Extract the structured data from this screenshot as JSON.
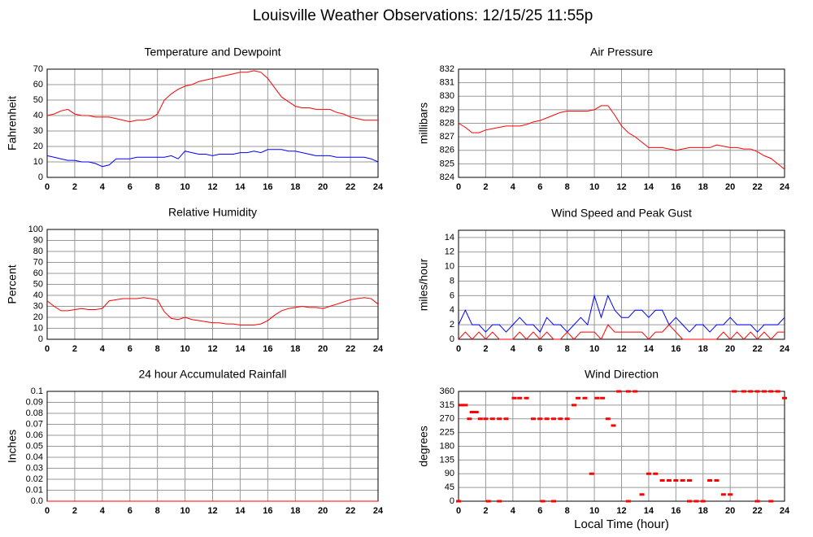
{
  "title": "Louisville Weather Observations: 12/15/25 11:55p",
  "chart_data": [
    {
      "type": "line",
      "title": "Temperature and Dewpoint",
      "ylabel": "Fahrenheit",
      "xlim": [
        0,
        24
      ],
      "xticks": [
        0,
        2,
        4,
        6,
        8,
        10,
        12,
        14,
        16,
        18,
        20,
        22,
        24
      ],
      "ylim": [
        0,
        70
      ],
      "yticks": [
        0,
        10,
        20,
        30,
        40,
        50,
        60,
        70
      ],
      "grid": true,
      "x": [
        0,
        0.5,
        1,
        1.5,
        2,
        2.5,
        3,
        3.5,
        4,
        4.5,
        5,
        5.5,
        6,
        6.5,
        7,
        7.5,
        8,
        8.5,
        9,
        9.5,
        10,
        10.5,
        11,
        11.5,
        12,
        12.5,
        13,
        13.5,
        14,
        14.5,
        15,
        15.5,
        16,
        16.5,
        17,
        17.5,
        18,
        18.5,
        19,
        19.5,
        20,
        20.5,
        21,
        21.5,
        22,
        22.5,
        23,
        23.5,
        24
      ],
      "series": [
        {
          "color": "#ff0000",
          "values": [
            40,
            41,
            43,
            44,
            41,
            40,
            40,
            39,
            39,
            39,
            38,
            37,
            36,
            37,
            37,
            38,
            41,
            50,
            54,
            57,
            59,
            60,
            62,
            63,
            64,
            65,
            66,
            67,
            68,
            68,
            69,
            68,
            64,
            58,
            52,
            49,
            46,
            45,
            45,
            44,
            44,
            44,
            42,
            41,
            39,
            38,
            37,
            37,
            37
          ]
        },
        {
          "color": "#0000ff",
          "values": [
            14,
            13,
            12,
            11,
            11,
            10,
            10,
            9,
            7,
            8,
            12,
            12,
            12,
            13,
            13,
            13,
            13,
            13,
            14,
            12,
            17,
            16,
            15,
            15,
            14,
            15,
            15,
            15,
            16,
            16,
            17,
            16,
            18,
            18,
            18,
            17,
            17,
            16,
            15,
            14,
            14,
            14,
            13,
            13,
            13,
            13,
            13,
            12,
            10
          ]
        }
      ]
    },
    {
      "type": "line",
      "title": "Air Pressure",
      "ylabel": "millibars",
      "xlim": [
        0,
        24
      ],
      "xticks": [
        0,
        2,
        4,
        6,
        8,
        10,
        12,
        14,
        16,
        18,
        20,
        22,
        24
      ],
      "ylim": [
        824,
        832
      ],
      "yticks": [
        824,
        825,
        826,
        827,
        828,
        829,
        830,
        831,
        832
      ],
      "grid": true,
      "x": [
        0,
        0.5,
        1,
        1.5,
        2,
        2.5,
        3,
        3.5,
        4,
        4.5,
        5,
        5.5,
        6,
        6.5,
        7,
        7.5,
        8,
        8.5,
        9,
        9.5,
        10,
        10.5,
        11,
        11.5,
        12,
        12.5,
        13,
        13.5,
        14,
        14.5,
        15,
        15.5,
        16,
        16.5,
        17,
        17.5,
        18,
        18.5,
        19,
        19.5,
        20,
        20.5,
        21,
        21.5,
        22,
        22.5,
        23,
        23.5,
        24
      ],
      "series": [
        {
          "color": "#ff0000",
          "values": [
            828,
            827.7,
            827.3,
            827.3,
            827.5,
            827.6,
            827.7,
            827.8,
            827.8,
            827.8,
            827.9,
            828.1,
            828.2,
            828.4,
            828.6,
            828.8,
            828.9,
            828.9,
            828.9,
            828.9,
            829.0,
            829.3,
            829.3,
            828.6,
            827.8,
            827.3,
            827,
            826.6,
            826.2,
            826.2,
            826.2,
            826.1,
            826.0,
            826.1,
            826.2,
            826.2,
            826.2,
            826.2,
            826.4,
            826.3,
            826.2,
            826.2,
            826.1,
            826.1,
            825.9,
            825.6,
            825.4,
            825,
            824.6
          ]
        }
      ]
    },
    {
      "type": "line",
      "title": "Relative Humidity",
      "ylabel": "Percent",
      "xlim": [
        0,
        24
      ],
      "xticks": [
        0,
        2,
        4,
        6,
        8,
        10,
        12,
        14,
        16,
        18,
        20,
        22,
        24
      ],
      "ylim": [
        0,
        100
      ],
      "yticks": [
        0,
        10,
        20,
        30,
        40,
        50,
        60,
        70,
        80,
        90,
        100
      ],
      "grid": true,
      "x": [
        0,
        0.5,
        1,
        1.5,
        2,
        2.5,
        3,
        3.5,
        4,
        4.5,
        5,
        5.5,
        6,
        6.5,
        7,
        7.5,
        8,
        8.5,
        9,
        9.5,
        10,
        10.5,
        11,
        11.5,
        12,
        12.5,
        13,
        13.5,
        14,
        14.5,
        15,
        15.5,
        16,
        16.5,
        17,
        17.5,
        18,
        18.5,
        19,
        19.5,
        20,
        20.5,
        21,
        21.5,
        22,
        22.5,
        23,
        23.5,
        24
      ],
      "series": [
        {
          "color": "#ff0000",
          "values": [
            35,
            30,
            26,
            26,
            27,
            28,
            27,
            27,
            28,
            35,
            36,
            37,
            37,
            37,
            38,
            37,
            36,
            25,
            19,
            18,
            20,
            18,
            17,
            16,
            15,
            15,
            14,
            14,
            13,
            13,
            13,
            14,
            17,
            22,
            26,
            28,
            29,
            30,
            29,
            29,
            28,
            30,
            32,
            34,
            36,
            37,
            38,
            37,
            32
          ]
        }
      ]
    },
    {
      "type": "line",
      "title": "Wind Speed and Peak Gust",
      "ylabel": "miles/hour",
      "xlim": [
        0,
        24
      ],
      "xticks": [
        0,
        2,
        4,
        6,
        8,
        10,
        12,
        14,
        16,
        18,
        20,
        22,
        24
      ],
      "ylim": [
        0,
        15
      ],
      "yticks": [
        0,
        2,
        4,
        6,
        8,
        10,
        12,
        14
      ],
      "grid": true,
      "x": [
        0,
        0.5,
        1,
        1.5,
        2,
        2.5,
        3,
        3.5,
        4,
        4.5,
        5,
        5.5,
        6,
        6.5,
        7,
        7.5,
        8,
        8.5,
        9,
        9.5,
        10,
        10.5,
        11,
        11.5,
        12,
        12.5,
        13,
        13.5,
        14,
        14.5,
        15,
        15.5,
        16,
        16.5,
        17,
        17.5,
        18,
        18.5,
        19,
        19.5,
        20,
        20.5,
        21,
        21.5,
        22,
        22.5,
        23,
        23.5,
        24
      ],
      "series": [
        {
          "color": "#0000ff",
          "values": [
            2,
            4,
            2,
            2,
            1,
            2,
            2,
            1,
            2,
            3,
            2,
            2,
            1,
            3,
            2,
            2,
            1,
            2,
            3,
            2,
            6,
            3,
            6,
            4,
            3,
            3,
            4,
            4,
            3,
            4,
            4,
            2,
            3,
            2,
            1,
            2,
            2,
            1,
            2,
            2,
            3,
            2,
            2,
            2,
            1,
            2,
            2,
            2,
            3
          ]
        },
        {
          "color": "#ff0000",
          "values": [
            0,
            1,
            0,
            1,
            0,
            1,
            0,
            0,
            0,
            1,
            0,
            1,
            0,
            1,
            0,
            0,
            1,
            0,
            1,
            1,
            1,
            0,
            2,
            1,
            1,
            1,
            1,
            1,
            0,
            1,
            1,
            2,
            1,
            0,
            0,
            0,
            0,
            0,
            0,
            1,
            0,
            1,
            0,
            1,
            0,
            1,
            0,
            1,
            1
          ]
        }
      ]
    },
    {
      "type": "line",
      "title": "24 hour Accumulated Rainfall",
      "ylabel": "Inches",
      "xlim": [
        0,
        24
      ],
      "xticks": [
        0,
        2,
        4,
        6,
        8,
        10,
        12,
        14,
        16,
        18,
        20,
        22,
        24
      ],
      "ylim": [
        0,
        0.1
      ],
      "yticks": [
        {
          "value": 0,
          "label": "0.0"
        },
        0.01,
        0.02,
        0.03,
        0.04,
        0.05,
        0.06,
        0.07,
        0.08,
        0.09,
        0.1
      ],
      "grid": true,
      "x": [
        0,
        24
      ],
      "series": [
        {
          "color": "#ff0000",
          "values": [
            0,
            0
          ]
        }
      ]
    },
    {
      "type": "scatter",
      "title": "Wind Direction",
      "ylabel": "degrees",
      "xlabel": "Local Time (hour)",
      "xlim": [
        0,
        24
      ],
      "xticks": [
        0,
        2,
        4,
        6,
        8,
        10,
        12,
        14,
        16,
        18,
        20,
        22,
        24
      ],
      "ylim": [
        0,
        360
      ],
      "yticks": [
        0,
        45,
        90,
        135,
        180,
        225,
        270,
        315,
        360
      ],
      "grid": true,
      "x": [
        0,
        0.2,
        0.5,
        0.8,
        1,
        1.3,
        1.6,
        2,
        2.5,
        3,
        3.5,
        2.2,
        3,
        4.1,
        4.5,
        5,
        5.5,
        6,
        6.5,
        7,
        7.5,
        8,
        6.2,
        7,
        8.5,
        8.8,
        9.3,
        9.8,
        10.2,
        10.6,
        11,
        11.4,
        11.8,
        12.5,
        13,
        13.5,
        14,
        14.5,
        15,
        15.5,
        16,
        16.5,
        17,
        17,
        17.5,
        18,
        18.5,
        19,
        19.5,
        20,
        20.3,
        21,
        21.5,
        22,
        22.5,
        23,
        23.5,
        24,
        22,
        23,
        12.5
      ],
      "series": [
        {
          "color": "#ff0000",
          "values": [
            0,
            315,
            315,
            270,
            292,
            292,
            270,
            270,
            270,
            270,
            270,
            0,
            0,
            338,
            338,
            338,
            270,
            270,
            270,
            270,
            270,
            270,
            0,
            0,
            315,
            338,
            338,
            90,
            338,
            338,
            270,
            248,
            360,
            360,
            360,
            22,
            90,
            90,
            68,
            68,
            68,
            68,
            68,
            0,
            0,
            0,
            68,
            68,
            22,
            22,
            360,
            360,
            360,
            360,
            360,
            360,
            360,
            338,
            0,
            0,
            0
          ]
        }
      ]
    }
  ]
}
